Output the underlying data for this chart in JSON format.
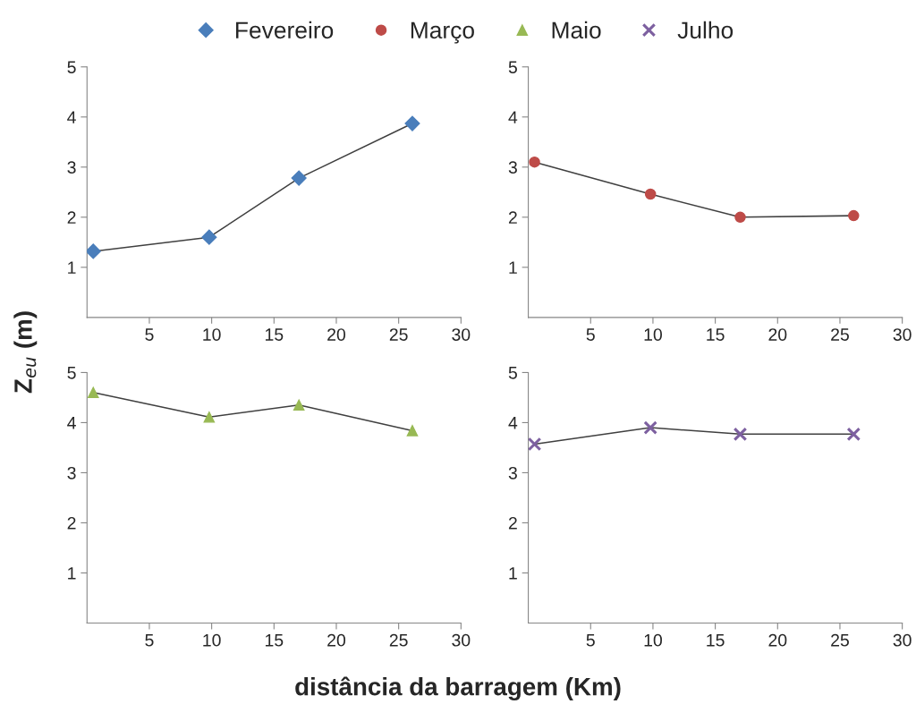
{
  "chart_data": [
    {
      "type": "line",
      "ylabel": "Z$_{eu}$ (m)",
      "xlabel": "distância da barragem (Km)",
      "legend": "top",
      "marker": "diamond",
      "xlim": [
        0,
        30
      ],
      "xticks": [
        5,
        10,
        15,
        20,
        25,
        30
      ],
      "ylim": [
        0,
        5
      ],
      "yticks": [
        1,
        2,
        3,
        4,
        5
      ],
      "grid": false,
      "x": [
        0.5,
        9.8,
        17,
        26.1
      ],
      "series": [
        {
          "name": "Fevereiro",
          "color": "#4a7ebb",
          "values": [
            1.32,
            1.6,
            2.78,
            3.87
          ]
        }
      ]
    },
    {
      "type": "line",
      "legend": "top",
      "marker": "circle",
      "xlim": [
        0,
        30
      ],
      "xticks": [
        5,
        10,
        15,
        20,
        25,
        30
      ],
      "ylim": [
        0,
        5
      ],
      "yticks": [
        1,
        2,
        3,
        4,
        5
      ],
      "grid": false,
      "x": [
        0.5,
        9.8,
        17,
        26.1
      ],
      "series": [
        {
          "name": "Março",
          "color": "#be4b48",
          "values": [
            3.1,
            2.46,
            2.0,
            2.03
          ]
        }
      ]
    },
    {
      "type": "line",
      "legend": "top",
      "marker": "triangle",
      "xlim": [
        0,
        30
      ],
      "xticks": [
        5,
        10,
        15,
        20,
        25,
        30
      ],
      "ylim": [
        0,
        5
      ],
      "yticks": [
        1,
        2,
        3,
        4,
        5
      ],
      "grid": false,
      "x": [
        0.5,
        9.8,
        17,
        26.1
      ],
      "series": [
        {
          "name": "Maio",
          "color": "#98b954",
          "values": [
            4.6,
            4.11,
            4.35,
            3.84
          ]
        }
      ]
    },
    {
      "type": "line",
      "legend": "top",
      "marker": "cross",
      "xlim": [
        0,
        30
      ],
      "xticks": [
        5,
        10,
        15,
        20,
        25,
        30
      ],
      "ylim": [
        0,
        5
      ],
      "yticks": [
        1,
        2,
        3,
        4,
        5
      ],
      "grid": false,
      "x": [
        0.5,
        9.8,
        17,
        26.1
      ],
      "series": [
        {
          "name": "Julho",
          "color": "#7d60a0",
          "values": [
            3.57,
            3.9,
            3.77,
            3.77
          ]
        }
      ]
    }
  ]
}
